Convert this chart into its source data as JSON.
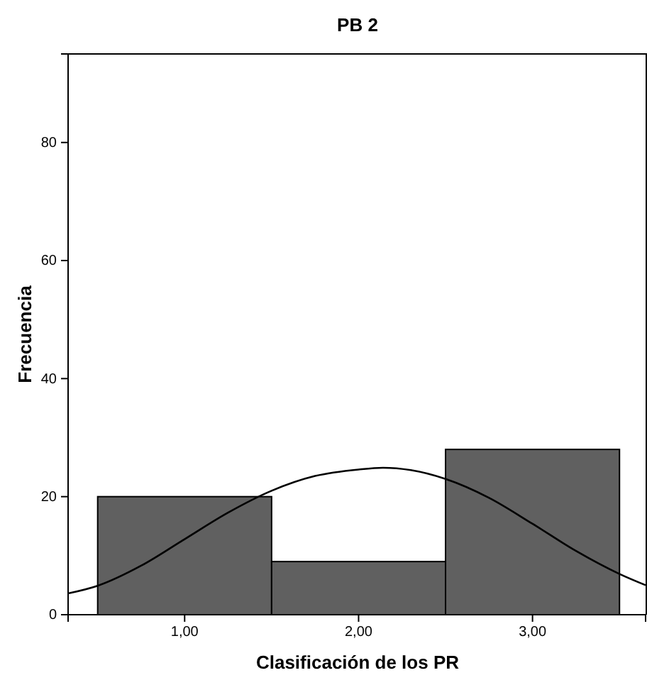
{
  "chart_data": {
    "type": "histogram",
    "title": "PB 2",
    "xlabel": "Clasificación de los PR",
    "ylabel": "Frecuencia",
    "xlim": [
      0.33,
      3.65
    ],
    "xticks": [
      {
        "value": 1,
        "label": "1,00"
      },
      {
        "value": 2,
        "label": "2,00"
      },
      {
        "value": 3,
        "label": "3,00"
      }
    ],
    "ylim": [
      0,
      95
    ],
    "yticks": [
      0,
      20,
      40,
      60,
      80
    ],
    "grid": false,
    "marker": "none",
    "line_style": "solid",
    "series": [
      {
        "bins": [
          0.5,
          1.5,
          2.5,
          3.5
        ],
        "values": [
          20,
          9,
          28
        ],
        "color": "#606060"
      },
      {
        "type": "line",
        "color": "#000000",
        "x": [
          0.33,
          0.5,
          0.75,
          1.0,
          1.25,
          1.5,
          1.75,
          2.0,
          2.14,
          2.3,
          2.5,
          2.75,
          3.0,
          3.25,
          3.5,
          3.65
        ],
        "values": [
          3.6,
          4.9,
          8.3,
          12.8,
          17.3,
          21.0,
          23.5,
          24.6,
          24.9,
          24.5,
          23.0,
          19.8,
          15.4,
          10.8,
          6.9,
          5.0
        ]
      }
    ]
  }
}
